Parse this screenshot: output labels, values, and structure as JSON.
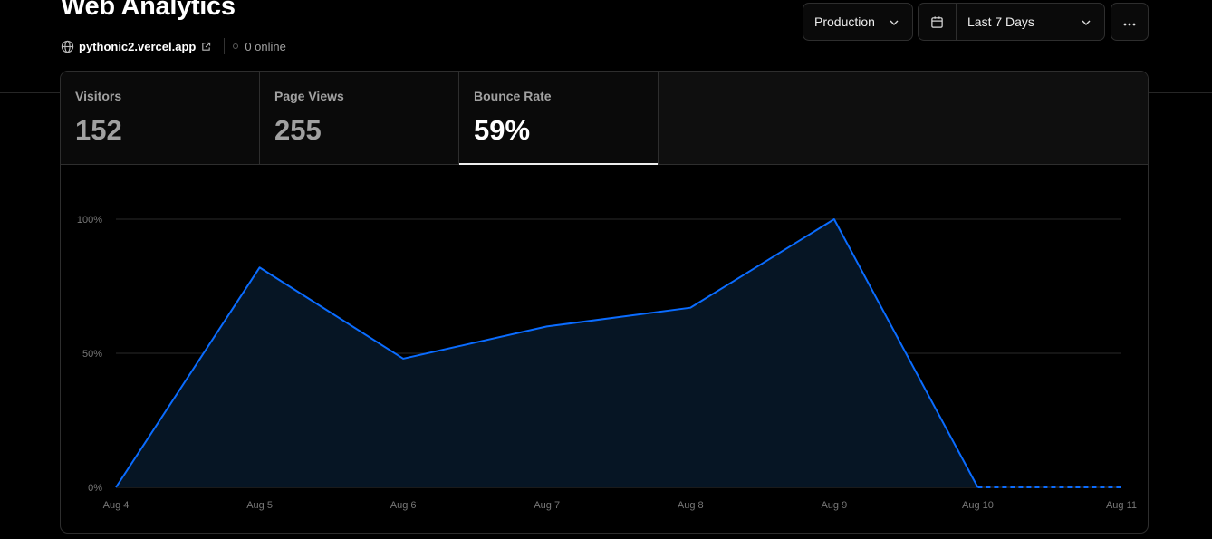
{
  "header": {
    "title": "Web Analytics",
    "site": "pythonic2.vercel.app",
    "online": "0 online"
  },
  "controls": {
    "environment": "Production",
    "range": "Last 7 Days"
  },
  "tabs": [
    {
      "label": "Visitors",
      "value": "152"
    },
    {
      "label": "Page Views",
      "value": "255"
    },
    {
      "label": "Bounce Rate",
      "value": "59%"
    }
  ],
  "colors": {
    "accent": "#0a6cff",
    "area": "#061524",
    "background": "#000000"
  },
  "chart_data": {
    "type": "area",
    "categories": [
      "Aug 4",
      "Aug 5",
      "Aug 6",
      "Aug 7",
      "Aug 8",
      "Aug 9",
      "Aug 10",
      "Aug 11"
    ],
    "values": [
      0,
      82,
      48,
      60,
      67,
      100,
      0,
      0
    ],
    "dashed_from_index": 6,
    "y_ticks": [
      "0%",
      "50%",
      "100%"
    ],
    "ylim": [
      0,
      100
    ],
    "grid": true
  }
}
